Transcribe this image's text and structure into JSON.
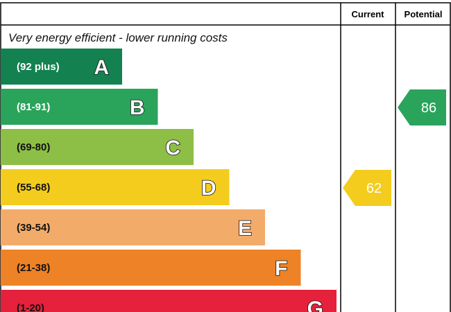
{
  "chart_data": {
    "type": "bar",
    "columns": {
      "current": "Current",
      "potential": "Potential"
    },
    "top_label": "Very energy efficient - lower running costs",
    "bands": [
      {
        "letter": "A",
        "range": "(92 plus)",
        "color": "#138150",
        "text_color": "#ffffff"
      },
      {
        "letter": "B",
        "range": "(81-91)",
        "color": "#2aa45b",
        "text_color": "#ffffff"
      },
      {
        "letter": "C",
        "range": "(69-80)",
        "color": "#8dbe45",
        "text_color": "#111111"
      },
      {
        "letter": "D",
        "range": "(55-68)",
        "color": "#f4cc1d",
        "text_color": "#111111"
      },
      {
        "letter": "E",
        "range": "(39-54)",
        "color": "#f3ab6a",
        "text_color": "#111111"
      },
      {
        "letter": "F",
        "range": "(21-38)",
        "color": "#ee8226",
        "text_color": "#111111"
      },
      {
        "letter": "G",
        "range": "(1-20)",
        "color": "#e5213b",
        "text_color": "#111111"
      }
    ],
    "ratings": {
      "current": {
        "value": 62,
        "band": "D",
        "color": "#f4cc1d"
      },
      "potential": {
        "value": 86,
        "band": "B",
        "color": "#2aa45b"
      }
    }
  }
}
